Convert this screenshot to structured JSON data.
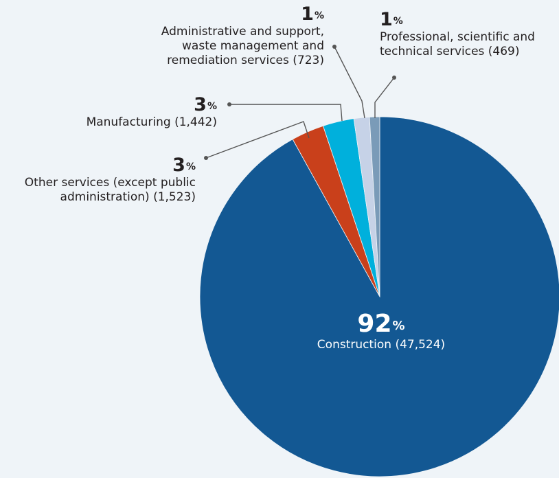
{
  "chart_data": {
    "type": "pie",
    "unit_symbol": "%",
    "start": "top, clockwise",
    "slices": [
      {
        "name": "Construction",
        "count_label": "(47,524)",
        "percent": 92,
        "value": 47524,
        "color": "#135893"
      },
      {
        "name": "Other services (except public administration)",
        "count_label": "(1,523)",
        "percent": 3,
        "value": 1523,
        "color": "#c9401b"
      },
      {
        "name": "Manufacturing",
        "count_label": "(1,442)",
        "percent": 3,
        "value": 1442,
        "color": "#00b0dc"
      },
      {
        "name": "Administrative and support, waste management and remediation services",
        "count_label": "(723)",
        "percent": 1,
        "value": 723,
        "color": "#c6d2e7"
      },
      {
        "name": "Professional, scientific and technical services",
        "count_label": "(469)",
        "percent": 1,
        "value": 469,
        "color": "#7a9bb8"
      }
    ]
  },
  "labels": {
    "construction": {
      "pct": "92",
      "line1": "Construction (47,524)"
    },
    "other_services": {
      "pct": "3",
      "line1": "Other services (except public",
      "line2": "administration) (1,523)"
    },
    "manufacturing": {
      "pct": "3",
      "line1": "Manufacturing (1,442)"
    },
    "administrative": {
      "pct": "1",
      "line1": "Administrative and support,",
      "line2": "waste management and",
      "line3": "remediation services (723)"
    },
    "professional": {
      "pct": "1",
      "line1": "Professional, scientific and",
      "line2": "technical services (469)"
    }
  }
}
